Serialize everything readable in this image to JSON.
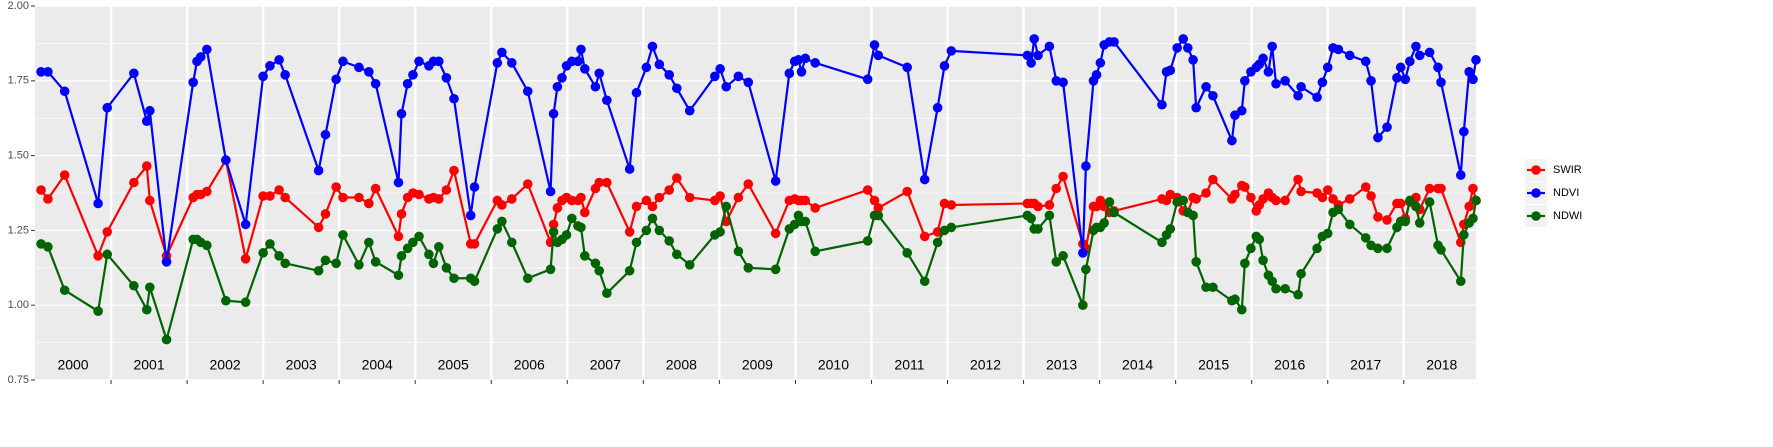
{
  "chart_data": {
    "type": "line",
    "annotations": [
      "2000",
      "2001",
      "2002",
      "2003",
      "2004",
      "2005",
      "2006",
      "2007",
      "2008",
      "2009",
      "2010",
      "2011",
      "2012",
      "2013",
      "2014",
      "2015",
      "2016",
      "2017",
      "2018"
    ],
    "x": [
      2000.08,
      2000.17,
      2000.39,
      2000.83,
      2000.95,
      2001.3,
      2001.47,
      2001.51,
      2001.73,
      2002.08,
      2002.13,
      2002.18,
      2002.26,
      2002.51,
      2002.77,
      2003.0,
      2003.09,
      2003.21,
      2003.29,
      2003.73,
      2003.82,
      2003.96,
      2004.05,
      2004.26,
      2004.39,
      2004.48,
      2004.78,
      2004.82,
      2004.9,
      2004.97,
      2005.05,
      2005.18,
      2005.24,
      2005.31,
      2005.41,
      2005.51,
      2005.73,
      2005.78,
      2006.08,
      2006.14,
      2006.27,
      2006.48,
      2006.78,
      2006.82,
      2006.87,
      2006.93,
      2006.99,
      2007.06,
      2007.14,
      2007.18,
      2007.23,
      2007.37,
      2007.42,
      2007.52,
      2007.82,
      2007.91,
      2008.04,
      2008.12,
      2008.21,
      2008.34,
      2008.44,
      2008.61,
      2008.94,
      2009.01,
      2009.09,
      2009.25,
      2009.38,
      2009.74,
      2009.92,
      2009.99,
      2010.04,
      2010.08,
      2010.13,
      2010.26,
      2010.95,
      2011.04,
      2011.09,
      2011.47,
      2011.7,
      2011.87,
      2011.96,
      2012.05,
      2013.05,
      2013.1,
      2013.14,
      2013.19,
      2013.34,
      2013.43,
      2013.52,
      2013.78,
      2013.82,
      2013.92,
      2013.96,
      2014.01,
      2014.06,
      2014.13,
      2014.19,
      2014.82,
      2014.88,
      2014.93,
      2015.02,
      2015.1,
      2015.16,
      2015.23,
      2015.27,
      2015.4,
      2015.49,
      2015.74,
      2015.78,
      2015.87,
      2015.91,
      2015.99,
      2016.06,
      2016.1,
      2016.15,
      2016.22,
      2016.27,
      2016.32,
      2016.44,
      2016.61,
      2016.65,
      2016.86,
      2016.93,
      2017.0,
      2017.07,
      2017.14,
      2017.29,
      2017.5,
      2017.57,
      2017.66,
      2017.78,
      2017.91,
      2017.96,
      2018.02,
      2018.08,
      2018.16,
      2018.21,
      2018.34,
      2018.45,
      2018.49,
      2018.75,
      2018.79,
      2018.86,
      2018.91,
      2018.95
    ],
    "series": [
      {
        "name": "SWIR",
        "color": "#ff0000",
        "values": [
          1.385,
          1.355,
          1.435,
          1.165,
          1.245,
          1.41,
          1.465,
          1.35,
          1.165,
          1.36,
          1.37,
          1.37,
          1.38,
          1.485,
          1.155,
          1.365,
          1.365,
          1.385,
          1.36,
          1.26,
          1.305,
          1.395,
          1.36,
          1.36,
          1.34,
          1.39,
          1.23,
          1.305,
          1.36,
          1.375,
          1.37,
          1.355,
          1.36,
          1.355,
          1.385,
          1.45,
          1.205,
          1.205,
          1.35,
          1.335,
          1.355,
          1.405,
          1.21,
          1.27,
          1.325,
          1.35,
          1.36,
          1.35,
          1.35,
          1.36,
          1.31,
          1.39,
          1.41,
          1.41,
          1.245,
          1.33,
          1.35,
          1.33,
          1.36,
          1.385,
          1.425,
          1.36,
          1.35,
          1.365,
          1.28,
          1.36,
          1.405,
          1.24,
          1.35,
          1.355,
          1.35,
          1.35,
          1.35,
          1.325,
          1.385,
          1.35,
          1.325,
          1.38,
          1.23,
          1.245,
          1.34,
          1.335,
          1.34,
          1.34,
          1.34,
          1.33,
          1.335,
          1.39,
          1.43,
          1.205,
          1.19,
          1.33,
          1.33,
          1.35,
          1.33,
          1.31,
          1.315,
          1.355,
          1.35,
          1.37,
          1.36,
          1.315,
          1.31,
          1.36,
          1.355,
          1.375,
          1.42,
          1.355,
          1.37,
          1.4,
          1.395,
          1.36,
          1.315,
          1.335,
          1.355,
          1.375,
          1.36,
          1.35,
          1.35,
          1.42,
          1.38,
          1.375,
          1.36,
          1.385,
          1.355,
          1.335,
          1.355,
          1.395,
          1.365,
          1.295,
          1.285,
          1.34,
          1.34,
          1.29,
          1.345,
          1.36,
          1.32,
          1.39,
          1.39,
          1.39,
          1.21,
          1.27,
          1.33,
          1.39,
          1.35
        ]
      },
      {
        "name": "NDVI",
        "color": "#0000ff",
        "values": [
          1.78,
          1.78,
          1.715,
          1.34,
          1.66,
          1.775,
          1.615,
          1.65,
          1.145,
          1.745,
          1.815,
          1.83,
          1.855,
          1.485,
          1.27,
          1.765,
          1.8,
          1.82,
          1.77,
          1.45,
          1.57,
          1.755,
          1.815,
          1.795,
          1.78,
          1.74,
          1.41,
          1.64,
          1.74,
          1.77,
          1.815,
          1.8,
          1.815,
          1.815,
          1.76,
          1.69,
          1.3,
          1.395,
          1.81,
          1.845,
          1.81,
          1.715,
          1.38,
          1.64,
          1.73,
          1.76,
          1.8,
          1.815,
          1.815,
          1.855,
          1.79,
          1.73,
          1.775,
          1.685,
          1.455,
          1.71,
          1.795,
          1.865,
          1.805,
          1.77,
          1.725,
          1.65,
          1.765,
          1.79,
          1.73,
          1.765,
          1.745,
          1.415,
          1.775,
          1.815,
          1.82,
          1.78,
          1.825,
          1.81,
          1.755,
          1.87,
          1.835,
          1.795,
          1.42,
          1.66,
          1.8,
          1.85,
          1.835,
          1.81,
          1.89,
          1.835,
          1.865,
          1.75,
          1.745,
          1.175,
          1.465,
          1.75,
          1.77,
          1.81,
          1.87,
          1.88,
          1.88,
          1.67,
          1.78,
          1.785,
          1.86,
          1.89,
          1.86,
          1.82,
          1.66,
          1.73,
          1.7,
          1.55,
          1.635,
          1.65,
          1.75,
          1.78,
          1.795,
          1.805,
          1.825,
          1.78,
          1.865,
          1.74,
          1.75,
          1.7,
          1.73,
          1.695,
          1.745,
          1.795,
          1.86,
          1.855,
          1.835,
          1.815,
          1.75,
          1.56,
          1.595,
          1.76,
          1.795,
          1.755,
          1.815,
          1.865,
          1.835,
          1.845,
          1.795,
          1.745,
          1.435,
          1.58,
          1.78,
          1.755,
          1.82
        ]
      },
      {
        "name": "NDWI",
        "color": "#006400",
        "values": [
          1.205,
          1.195,
          1.05,
          0.98,
          1.17,
          1.065,
          0.985,
          1.06,
          0.885,
          1.22,
          1.22,
          1.21,
          1.2,
          1.015,
          1.01,
          1.175,
          1.205,
          1.165,
          1.14,
          1.115,
          1.15,
          1.14,
          1.235,
          1.135,
          1.21,
          1.145,
          1.1,
          1.165,
          1.19,
          1.21,
          1.23,
          1.17,
          1.14,
          1.195,
          1.125,
          1.09,
          1.09,
          1.08,
          1.255,
          1.28,
          1.21,
          1.09,
          1.12,
          1.245,
          1.21,
          1.22,
          1.235,
          1.29,
          1.265,
          1.26,
          1.165,
          1.14,
          1.115,
          1.04,
          1.115,
          1.21,
          1.25,
          1.29,
          1.25,
          1.215,
          1.17,
          1.135,
          1.235,
          1.245,
          1.33,
          1.18,
          1.125,
          1.12,
          1.255,
          1.27,
          1.3,
          1.28,
          1.28,
          1.18,
          1.215,
          1.3,
          1.3,
          1.175,
          1.08,
          1.21,
          1.25,
          1.26,
          1.3,
          1.29,
          1.255,
          1.255,
          1.3,
          1.145,
          1.165,
          1.0,
          1.12,
          1.25,
          1.26,
          1.26,
          1.275,
          1.345,
          1.31,
          1.21,
          1.235,
          1.255,
          1.345,
          1.35,
          1.31,
          1.3,
          1.145,
          1.06,
          1.06,
          1.015,
          1.02,
          0.985,
          1.14,
          1.19,
          1.23,
          1.22,
          1.15,
          1.1,
          1.08,
          1.055,
          1.055,
          1.035,
          1.105,
          1.19,
          1.23,
          1.24,
          1.31,
          1.32,
          1.27,
          1.225,
          1.2,
          1.19,
          1.19,
          1.26,
          1.28,
          1.28,
          1.35,
          1.33,
          1.275,
          1.345,
          1.2,
          1.185,
          1.08,
          1.235,
          1.275,
          1.29,
          1.35
        ]
      }
    ],
    "xlim": [
      2000,
      2018.95
    ],
    "xticks": [
      2001,
      2002,
      2003,
      2004,
      2005,
      2006,
      2007,
      2008,
      2009,
      2010,
      2011,
      2012,
      2013,
      2014,
      2015,
      2016,
      2017,
      2018
    ],
    "ylim": [
      0.75,
      2.0
    ],
    "yticks": [
      0.75,
      {
        "value": 1.0,
        "label": "1.00"
      },
      1.25,
      {
        "value": 1.5,
        "label": "1.50"
      },
      1.75,
      {
        "value": 2.0,
        "label": "2.00"
      }
    ],
    "grid": true,
    "legend": "right"
  }
}
